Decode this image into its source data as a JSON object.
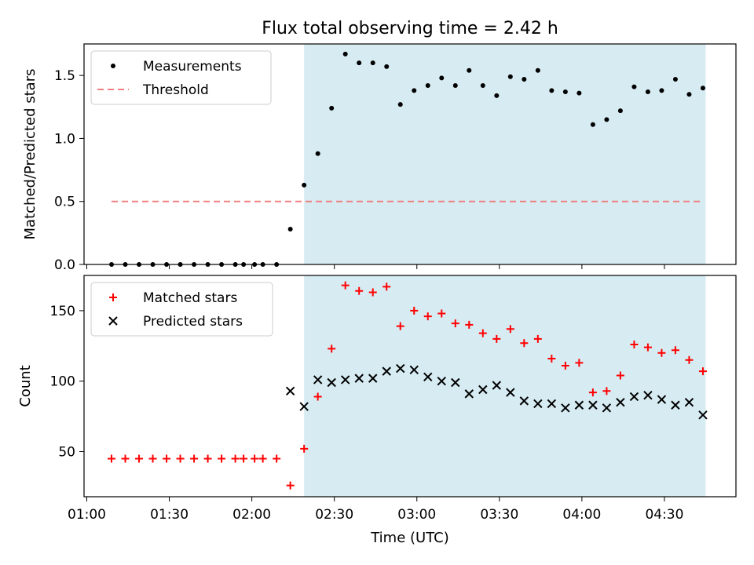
{
  "title": "Flux total observing time = 2.42 h",
  "xlabel": "Time (UTC)",
  "xtick_labels": [
    "01:00",
    "01:30",
    "02:00",
    "02:30",
    "03:00",
    "03:30",
    "04:00",
    "04:30"
  ],
  "colors": {
    "highlight": "#add8e6",
    "threshold": "#f08080",
    "matched": "#ff0000",
    "predicted": "#000000",
    "measurement": "#000000"
  },
  "chart_data": [
    {
      "type": "scatter",
      "ylabel": "Matched/Predicted stars",
      "ylim": [
        0,
        1.75
      ],
      "xlim": [
        "00:59",
        "04:56"
      ],
      "ytick_labels": [
        "0.0",
        "0.5",
        "1.0",
        "1.5"
      ],
      "highlight_span": {
        "x_start": "02:19",
        "x_end": "04:45"
      },
      "legend": {
        "placement": "upper left",
        "entries": [
          "Measurements",
          "Threshold"
        ]
      },
      "series": [
        {
          "name": "Measurements",
          "kind": "scatter",
          "x": [
            "01:09",
            "01:14",
            "01:19",
            "01:24",
            "01:29",
            "01:34",
            "01:39",
            "01:44",
            "01:49",
            "01:54",
            "01:57",
            "02:01",
            "02:04",
            "02:09",
            "02:14",
            "02:19",
            "02:24",
            "02:29",
            "02:34",
            "02:39",
            "02:44",
            "02:49",
            "02:54",
            "02:59",
            "03:04",
            "03:09",
            "03:14",
            "03:19",
            "03:24",
            "03:29",
            "03:34",
            "03:39",
            "03:44",
            "03:49",
            "03:54",
            "03:59",
            "04:04",
            "04:09",
            "04:14",
            "04:19",
            "04:24",
            "04:29",
            "04:34",
            "04:39",
            "04:44"
          ],
          "y": [
            0,
            0,
            0,
            0,
            0,
            0,
            0,
            0,
            0,
            0,
            0,
            0,
            0,
            0,
            0.28,
            0.63,
            0.88,
            1.24,
            1.67,
            1.6,
            1.6,
            1.57,
            1.27,
            1.38,
            1.42,
            1.48,
            1.42,
            1.54,
            1.42,
            1.34,
            1.49,
            1.47,
            1.54,
            1.38,
            1.37,
            1.36,
            1.11,
            1.15,
            1.22,
            1.41,
            1.37,
            1.38,
            1.47,
            1.35,
            1.4
          ]
        },
        {
          "name": "Threshold",
          "kind": "dashed-line",
          "x": [
            "01:09",
            "04:44"
          ],
          "y": [
            0.5,
            0.5
          ]
        }
      ]
    },
    {
      "type": "scatter",
      "ylabel": "Count",
      "ylim": [
        18,
        175
      ],
      "xlim": [
        "00:59",
        "04:56"
      ],
      "ytick_values": [
        50,
        100,
        150
      ],
      "ytick_labels": [
        "50",
        "100",
        "150"
      ],
      "highlight_span": {
        "x_start": "02:19",
        "x_end": "04:45"
      },
      "legend": {
        "placement": "upper left",
        "entries": [
          "Matched stars",
          "Predicted stars"
        ]
      },
      "series": [
        {
          "name": "Matched stars",
          "marker": "plus",
          "x": [
            "01:09",
            "01:14",
            "01:19",
            "01:24",
            "01:29",
            "01:34",
            "01:39",
            "01:44",
            "01:49",
            "01:54",
            "01:57",
            "02:01",
            "02:04",
            "02:09",
            "02:14",
            "02:19",
            "02:24",
            "02:29",
            "02:34",
            "02:39",
            "02:44",
            "02:49",
            "02:54",
            "02:59",
            "03:04",
            "03:09",
            "03:14",
            "03:19",
            "03:24",
            "03:29",
            "03:34",
            "03:39",
            "03:44",
            "03:49",
            "03:54",
            "03:59",
            "04:04",
            "04:09",
            "04:14",
            "04:19",
            "04:24",
            "04:29",
            "04:34",
            "04:39",
            "04:44"
          ],
          "y": [
            45,
            45,
            45,
            45,
            45,
            45,
            45,
            45,
            45,
            45,
            45,
            45,
            45,
            45,
            26,
            52,
            89,
            123,
            168,
            164,
            163,
            167,
            139,
            150,
            146,
            148,
            141,
            140,
            134,
            130,
            137,
            127,
            130,
            116,
            111,
            113,
            92,
            93,
            104,
            126,
            124,
            120,
            122,
            115,
            107
          ]
        },
        {
          "name": "Predicted stars",
          "marker": "x",
          "x": [
            "02:14",
            "02:19",
            "02:24",
            "02:29",
            "02:34",
            "02:39",
            "02:44",
            "02:49",
            "02:54",
            "02:59",
            "03:04",
            "03:09",
            "03:14",
            "03:19",
            "03:24",
            "03:29",
            "03:34",
            "03:39",
            "03:44",
            "03:49",
            "03:54",
            "03:59",
            "04:04",
            "04:09",
            "04:14",
            "04:19",
            "04:24",
            "04:29",
            "04:34",
            "04:39",
            "04:44"
          ],
          "y": [
            93,
            82,
            101,
            99,
            101,
            102,
            102,
            107,
            109,
            108,
            103,
            100,
            99,
            91,
            94,
            97,
            92,
            86,
            84,
            84,
            81,
            83,
            83,
            81,
            85,
            89,
            90,
            87,
            83,
            85,
            76
          ]
        }
      ]
    }
  ]
}
